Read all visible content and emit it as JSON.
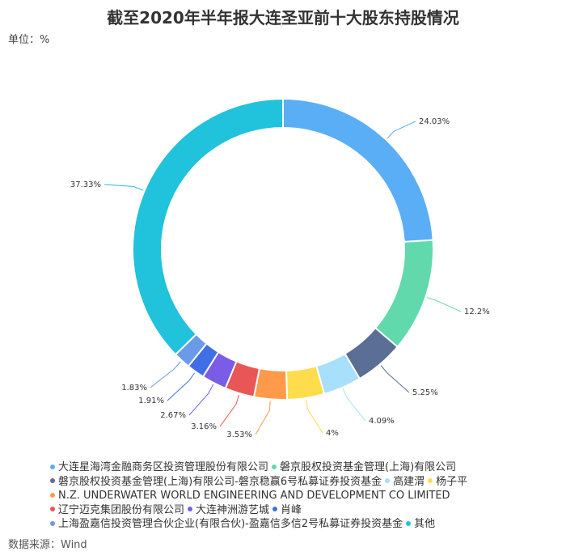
{
  "title": "截至2020年半年报大连圣亚前十大股东持股情况",
  "unit": "单位：%",
  "source": "数据来源：Wind",
  "chart_data": {
    "type": "pie",
    "title": "截至2020年半年报大连圣亚前十大股东持股情况",
    "slices": [
      {
        "name": "大连星海湾金融商务区投资管理股份有限公司",
        "value": 24.03,
        "label": "24.03%",
        "color": "#5aaef5"
      },
      {
        "name": "磐京股权投资基金管理(上海)有限公司",
        "value": 12.2,
        "label": "12.2%",
        "color": "#62d9ad"
      },
      {
        "name": "磐京股权投资基金管理(上海)有限公司-磐京稳赢6号私募证券投资基金",
        "value": 5.25,
        "label": "5.25%",
        "color": "#5b6e96"
      },
      {
        "name": "高建渭",
        "value": 4.09,
        "label": "4.09%",
        "color": "#a8dffa"
      },
      {
        "name": "杨子平",
        "value": 4,
        "label": "4%",
        "color": "#ffdc4c"
      },
      {
        "name": "N.Z. UNDERWATER WORLD ENGINEERING AND DEVELOPMENT CO LIMITED",
        "value": 3.53,
        "label": "3.53%",
        "color": "#ff9a4b"
      },
      {
        "name": "辽宁迈克集团股份有限公司",
        "value": 3.16,
        "label": "3.16%",
        "color": "#e85656"
      },
      {
        "name": "大连神洲游艺城",
        "value": 2.67,
        "label": "2.67%",
        "color": "#7a5ce6"
      },
      {
        "name": "肖峰",
        "value": 1.91,
        "label": "1.91%",
        "color": "#3f6ee6"
      },
      {
        "name": "上海盈嘉信投资管理合伙企业(有限合伙)-盈嘉信多信2号私募证券投资基金",
        "value": 1.83,
        "label": "1.83%",
        "color": "#6a9ae8"
      },
      {
        "name": "其他",
        "value": 37.33,
        "label": "37.33%",
        "color": "#21c2db"
      }
    ]
  }
}
